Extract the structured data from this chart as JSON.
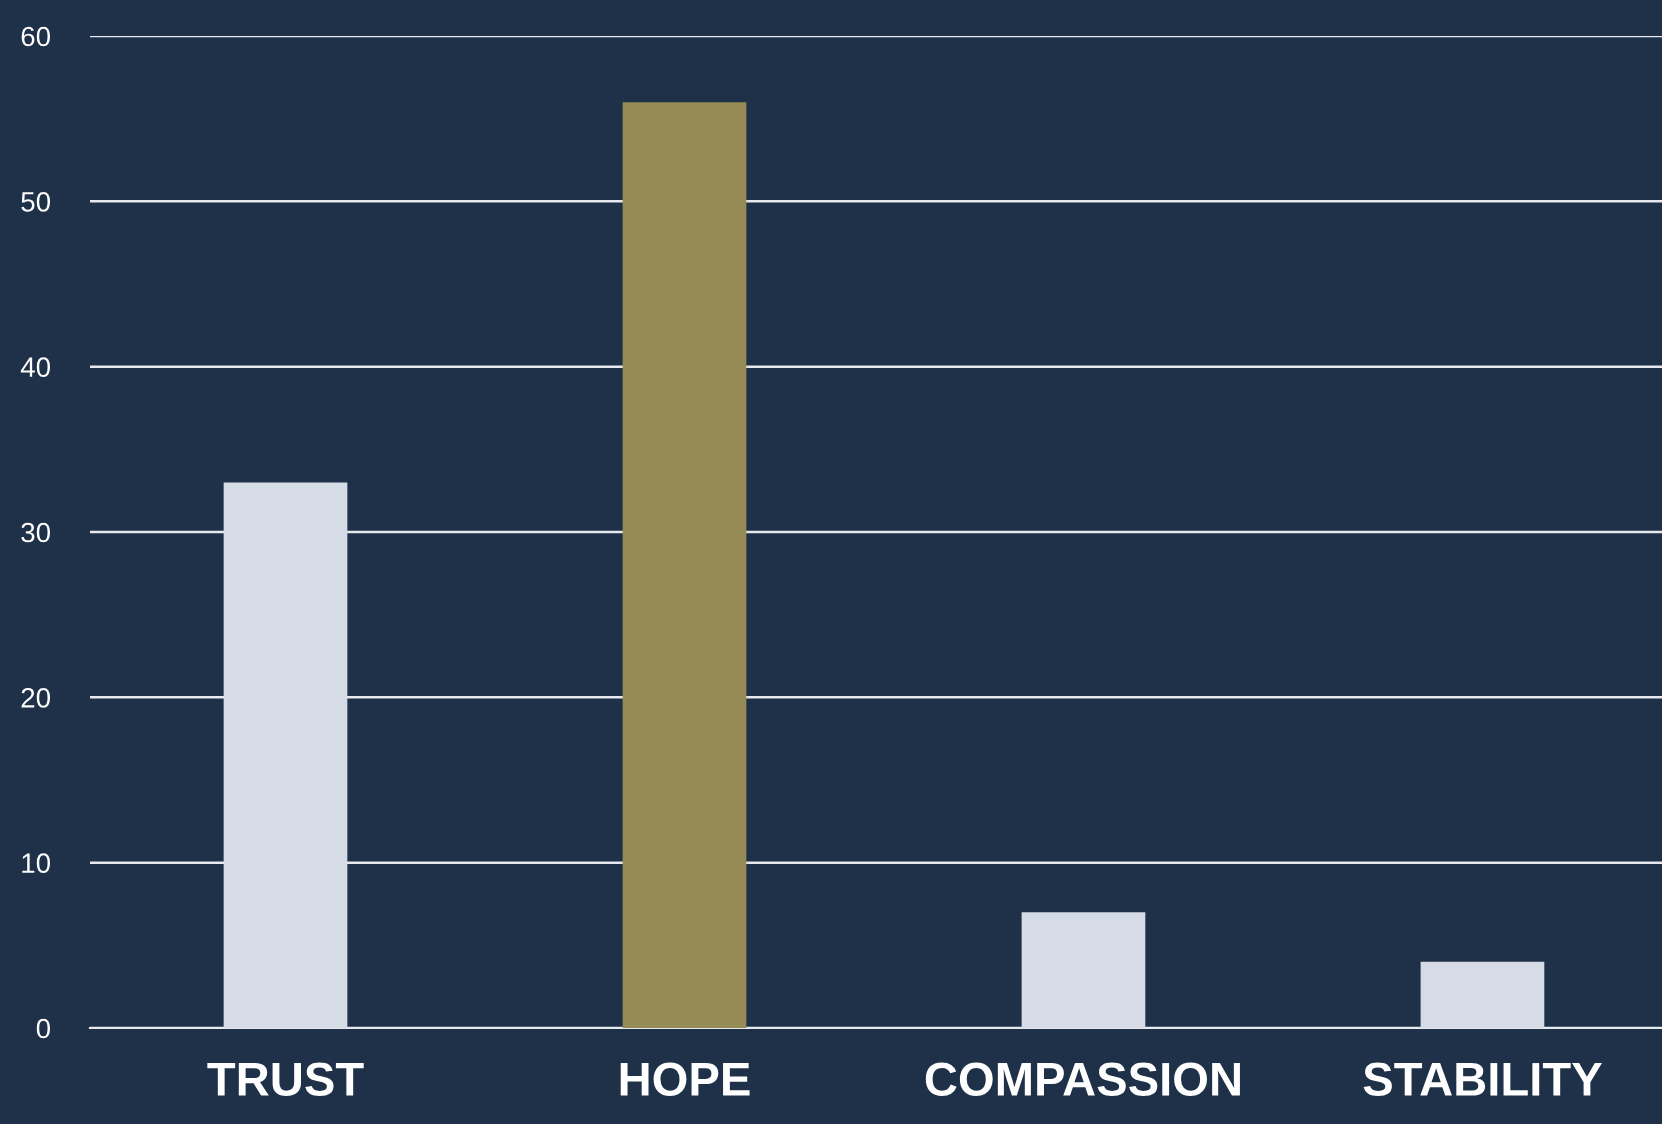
{
  "chart_data": {
    "type": "bar",
    "categories": [
      "TRUST",
      "HOPE",
      "COMPASSION",
      "STABILITY"
    ],
    "values": [
      33,
      56,
      7,
      4
    ],
    "colors": [
      "#d5dce6",
      "#968b55",
      "#d5dce6",
      "#d5dce6"
    ],
    "ylim": [
      0,
      60
    ],
    "yticks": [
      0,
      10,
      20,
      30,
      40,
      50,
      60
    ],
    "grid": "y"
  }
}
